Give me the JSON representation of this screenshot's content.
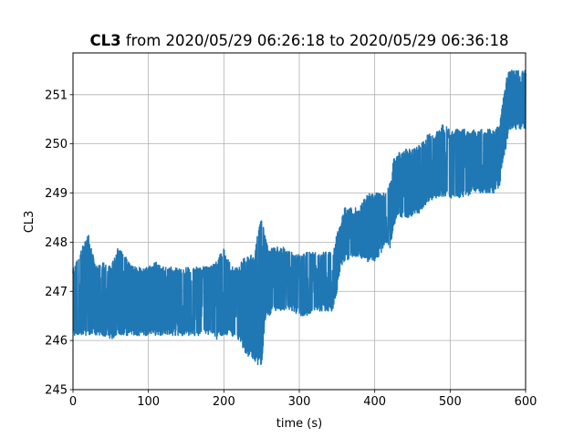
{
  "chart_data": {
    "type": "line",
    "title_bold": "CL3",
    "title_rest": " from 2020/05/29 06:26:18 to 2020/05/29 06:36:18",
    "xlabel": "time (s)",
    "ylabel": "CL3",
    "xlim": [
      0,
      600
    ],
    "ylim": [
      245,
      251.85
    ],
    "xticks": [
      0,
      100,
      200,
      300,
      400,
      500,
      600
    ],
    "yticks": [
      245,
      246,
      247,
      248,
      249,
      250,
      251
    ],
    "grid": true,
    "legend": false,
    "series": [
      {
        "color": "#1f77b4",
        "x": [
          0,
          10,
          20,
          30,
          40,
          50,
          60,
          70,
          80,
          90,
          100,
          110,
          120,
          130,
          140,
          150,
          160,
          170,
          180,
          190,
          200,
          210,
          220,
          230,
          240,
          245,
          250,
          255,
          260,
          270,
          280,
          290,
          300,
          310,
          320,
          330,
          340,
          345,
          350,
          355,
          360,
          370,
          380,
          390,
          400,
          410,
          415,
          420,
          425,
          430,
          440,
          450,
          460,
          470,
          480,
          490,
          500,
          510,
          520,
          530,
          540,
          550,
          560,
          565,
          570,
          575,
          580,
          585,
          590,
          595,
          600
        ],
        "y_min": [
          246.1,
          246.1,
          246.1,
          246.1,
          246.1,
          246.0,
          246.1,
          246.1,
          246.1,
          246.1,
          246.1,
          246.1,
          246.1,
          246.1,
          246.1,
          246.1,
          246.1,
          246.1,
          246.1,
          246.0,
          246.1,
          246.1,
          246.0,
          245.7,
          245.6,
          245.5,
          245.5,
          246.4,
          246.5,
          246.6,
          246.6,
          246.6,
          246.5,
          246.5,
          246.6,
          246.6,
          246.6,
          246.6,
          247.0,
          247.5,
          247.6,
          247.7,
          247.7,
          247.6,
          247.6,
          247.8,
          248.0,
          247.8,
          248.3,
          248.5,
          248.5,
          248.5,
          248.6,
          248.8,
          248.9,
          248.9,
          248.9,
          248.9,
          248.9,
          249.0,
          249.0,
          249.0,
          249.0,
          249.1,
          249.6,
          250.0,
          250.3,
          250.3,
          250.3,
          250.3,
          250.3
        ],
        "y_max": [
          247.5,
          247.8,
          248.2,
          247.5,
          247.6,
          247.5,
          247.9,
          247.7,
          247.5,
          247.5,
          247.5,
          247.6,
          247.5,
          247.5,
          247.5,
          247.5,
          247.5,
          247.5,
          247.5,
          247.6,
          247.9,
          247.5,
          247.5,
          247.8,
          247.7,
          248.2,
          248.5,
          248.1,
          247.9,
          247.9,
          247.9,
          247.8,
          247.8,
          247.8,
          247.8,
          247.8,
          247.8,
          247.8,
          248.2,
          248.4,
          248.7,
          248.7,
          248.7,
          249.0,
          249.0,
          249.0,
          249.0,
          249.2,
          249.7,
          249.8,
          249.9,
          249.9,
          250.0,
          250.2,
          250.2,
          250.4,
          250.3,
          250.3,
          250.3,
          250.3,
          250.3,
          250.3,
          250.3,
          250.4,
          250.9,
          251.4,
          251.5,
          251.5,
          251.5,
          251.5,
          251.5
        ]
      }
    ]
  }
}
